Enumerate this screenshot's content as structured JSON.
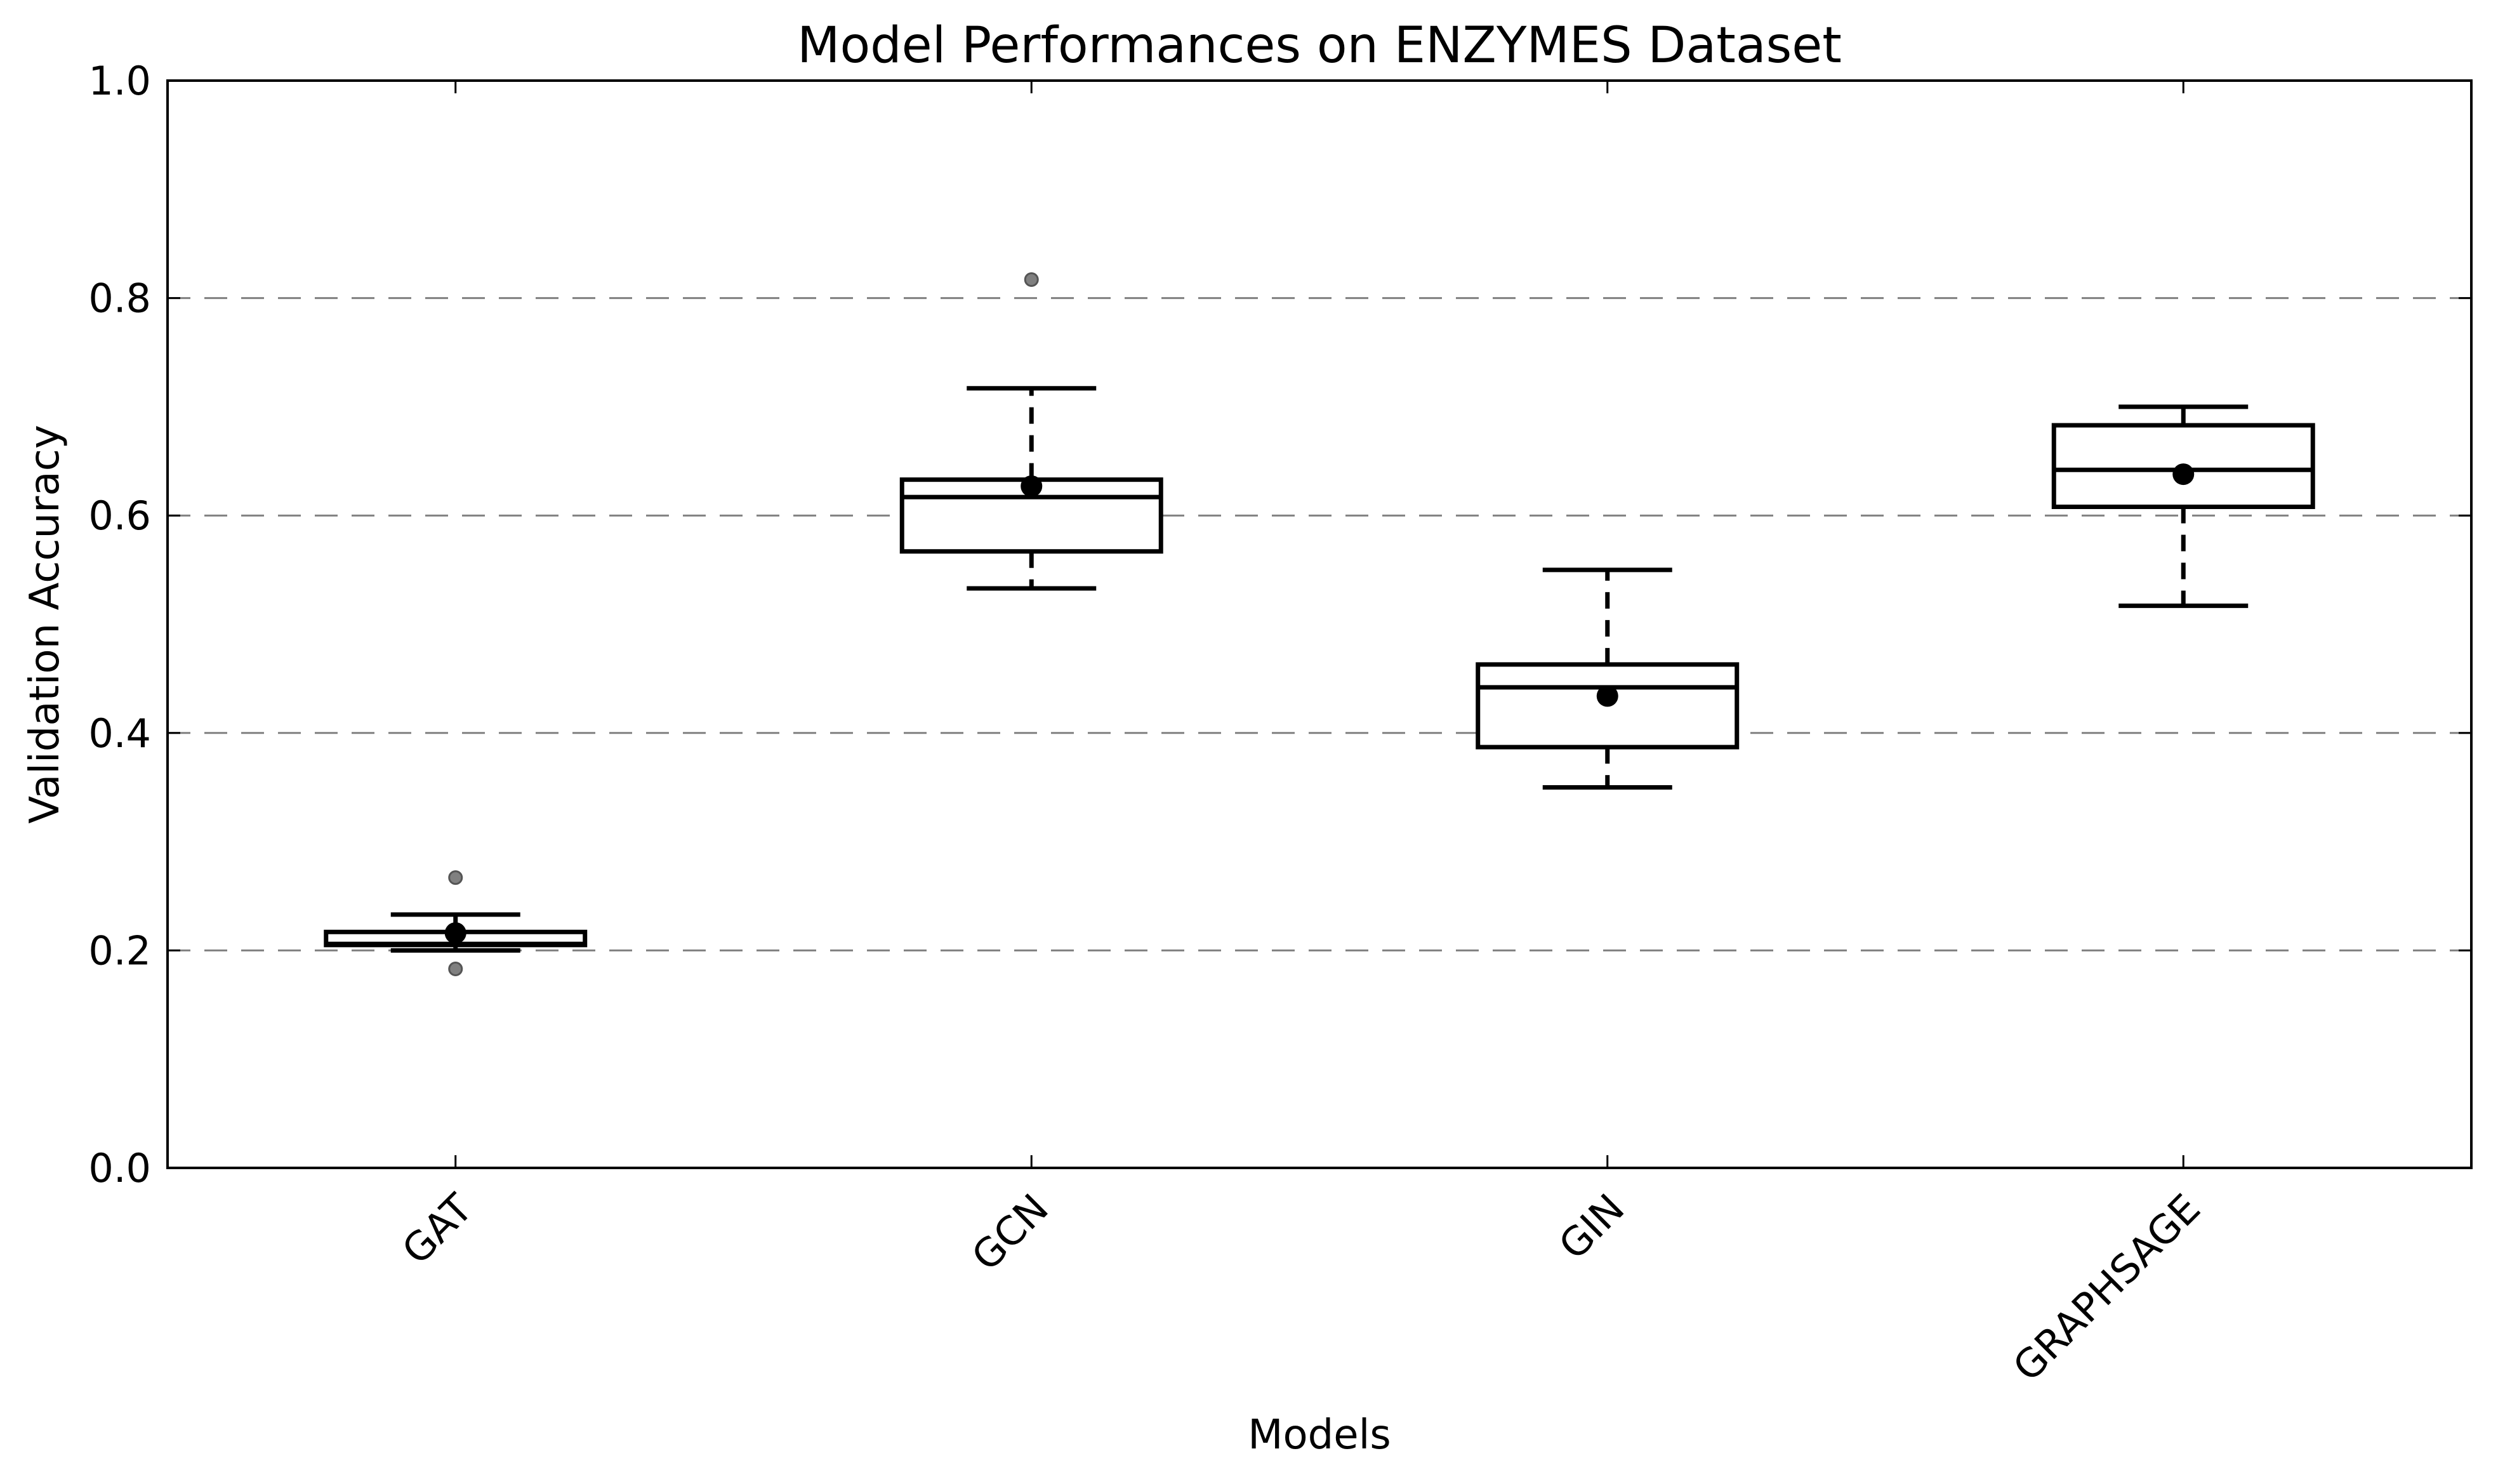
{
  "chart_data": {
    "type": "box",
    "title": "Model Performances on ENZYMES Dataset",
    "xlabel": "Models",
    "ylabel": "Validation Accuracy",
    "ylim": [
      0.0,
      1.0
    ],
    "yticks": [
      0.0,
      0.2,
      0.4,
      0.6,
      0.8,
      1.0
    ],
    "ytick_labels": [
      "0.0",
      "0.2",
      "0.4",
      "0.6",
      "0.8",
      "1.0"
    ],
    "grid": "horizontal dashed",
    "categories": [
      "GAT",
      "GCN",
      "GIN",
      "GRAPHSAGE"
    ],
    "boxes": [
      {
        "name": "GAT",
        "whisker_low": 0.2,
        "q1": 0.205,
        "median": 0.206,
        "q3": 0.217,
        "whisker_high": 0.233,
        "mean": 0.216,
        "outliers": [
          0.267,
          0.183
        ]
      },
      {
        "name": "GCN",
        "whisker_low": 0.533,
        "q1": 0.567,
        "median": 0.617,
        "q3": 0.633,
        "whisker_high": 0.717,
        "mean": 0.627,
        "outliers": [
          0.817
        ]
      },
      {
        "name": "GIN",
        "whisker_low": 0.35,
        "q1": 0.387,
        "median": 0.442,
        "q3": 0.463,
        "whisker_high": 0.55,
        "mean": 0.434,
        "outliers": []
      },
      {
        "name": "GRAPHSAGE",
        "whisker_low": 0.517,
        "q1": 0.608,
        "median": 0.642,
        "q3": 0.683,
        "whisker_high": 0.7,
        "mean": 0.638,
        "outliers": []
      }
    ],
    "colors": {
      "box": "#000000",
      "grid": "#808080",
      "outlier": "#808080",
      "mean": "#000000"
    }
  }
}
